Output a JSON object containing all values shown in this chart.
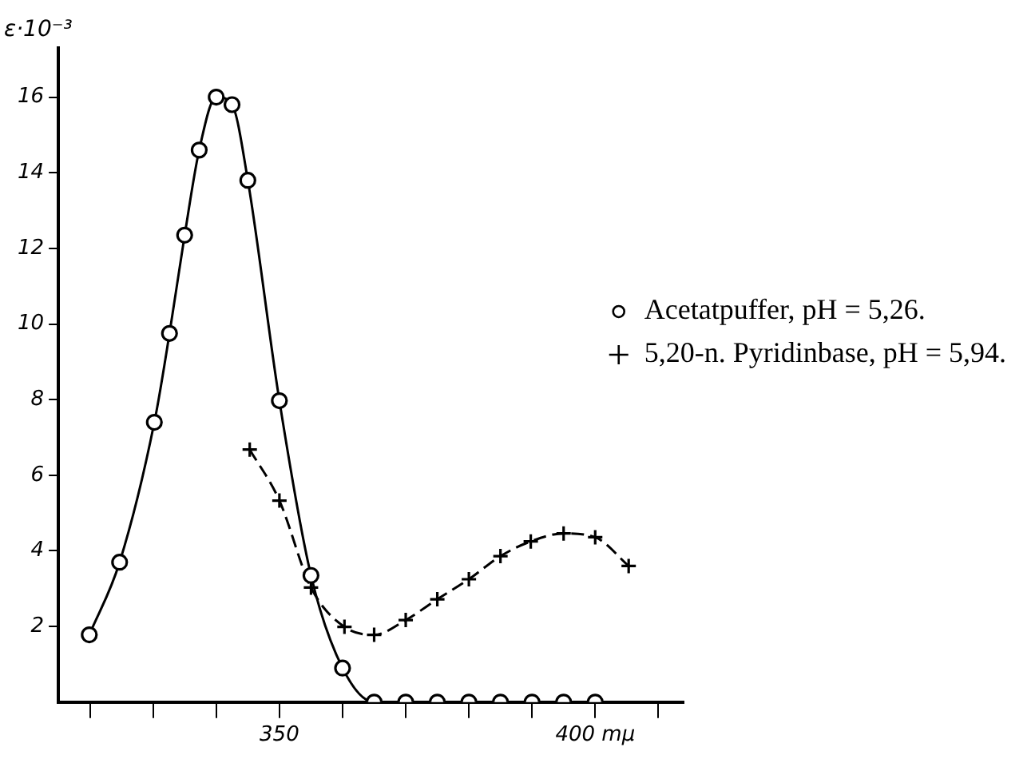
{
  "chart_data": {
    "type": "line",
    "ylabel": "ε·10⁻³",
    "legend": "right",
    "xlim": [
      315,
      414
    ],
    "ylim": [
      0,
      17.3
    ],
    "xticks": [
      {
        "value": 320,
        "label": null
      },
      {
        "value": 330,
        "label": null
      },
      {
        "value": 340,
        "label": null
      },
      350,
      {
        "value": 360,
        "label": null
      },
      {
        "value": 370,
        "label": null
      },
      {
        "value": 380,
        "label": null
      },
      {
        "value": 390,
        "label": null
      },
      {
        "value": 400,
        "label": "400 mμ"
      },
      {
        "value": 410,
        "label": null
      }
    ],
    "yticks": [
      2,
      4,
      6,
      8,
      10,
      12,
      14,
      16
    ],
    "grid": false,
    "series": [
      {
        "name": "Acetatpuffer, pH = 5,26.",
        "color": "#000000",
        "marker": "circle",
        "line_style": "solid",
        "x": [
          319.9,
          324.7,
          330.2,
          332.6,
          335,
          337.3,
          340,
          342.5,
          345,
          350,
          355,
          360,
          365,
          370,
          375,
          380,
          385,
          390,
          395,
          400
        ],
        "values": [
          1.78,
          3.7,
          7.4,
          9.75,
          12.35,
          14.6,
          16.0,
          15.8,
          13.8,
          7.97,
          3.35,
          0.9,
          0,
          0,
          0,
          0,
          0,
          0,
          0,
          0
        ]
      },
      {
        "name": "5,20-n. Pyridinbase, pH = 5,94.",
        "color": "#000000",
        "marker": "cross",
        "line_style": "dashed",
        "x": [
          345.3,
          350,
          355,
          360.3,
          365,
          370,
          375,
          380,
          385,
          389.8,
          395,
          400,
          405.3
        ],
        "values": [
          6.68,
          5.33,
          3.03,
          1.99,
          1.78,
          2.17,
          2.72,
          3.25,
          3.86,
          4.25,
          4.46,
          4.36,
          3.6
        ]
      }
    ]
  }
}
